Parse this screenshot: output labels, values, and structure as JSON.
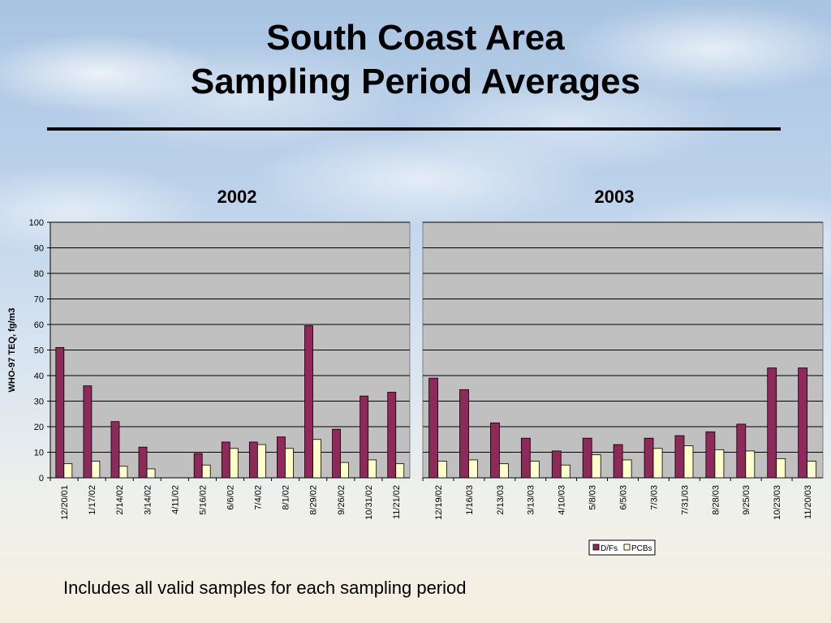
{
  "slide": {
    "title_line1": "South Coast Area",
    "title_line2": "Sampling Period Averages",
    "caption": "Includes all valid samples for each sampling period"
  },
  "colors": {
    "dfs": "#8e2a59",
    "pcbs": "#ffffcc",
    "plot_bg": "#c0c0c0",
    "gridline": "#000000"
  },
  "chart_data": [
    {
      "type": "bar",
      "title": "2002",
      "ylabel": "WHO-97 TEQ, fg/m3",
      "ylim": [
        0,
        100
      ],
      "yticks": [
        0,
        10,
        20,
        30,
        40,
        50,
        60,
        70,
        80,
        90,
        100
      ],
      "grid": true,
      "categories": [
        "12/20/01",
        "1/17/02",
        "2/14/02",
        "3/14/02",
        "4/11/02",
        "5/16/02",
        "6/6/02",
        "7/4/02",
        "8/1/02",
        "8/29/02",
        "9/26/02",
        "10/31/02",
        "11/21/02"
      ],
      "series": [
        {
          "name": "D/Fs",
          "values": [
            51,
            36,
            22,
            12,
            null,
            9.5,
            14,
            14,
            16,
            59.5,
            19,
            32,
            33.5
          ]
        },
        {
          "name": "PCBs",
          "values": [
            5.5,
            6.5,
            4.5,
            3.5,
            null,
            5,
            11.5,
            13,
            11.5,
            15,
            6,
            7,
            5.5
          ]
        }
      ]
    },
    {
      "type": "bar",
      "title": "2003",
      "ylim": [
        0,
        100
      ],
      "grid": true,
      "legend_position": "bottom-right",
      "categories": [
        "12/19/02",
        "1/16/03",
        "2/13/03",
        "3/13/03",
        "4/10/03",
        "5/8/03",
        "6/5/03",
        "7/3/03",
        "7/31/03",
        "8/28/03",
        "9/25/03",
        "10/23/03",
        "11/20/03"
      ],
      "series": [
        {
          "name": "D/Fs",
          "values": [
            39,
            34.5,
            21.5,
            15.5,
            10.5,
            15.5,
            13,
            15.5,
            16.5,
            18,
            21,
            43,
            43
          ]
        },
        {
          "name": "PCBs",
          "values": [
            6.5,
            7,
            5.5,
            6.5,
            5,
            9,
            7,
            11.5,
            12.5,
            11,
            10.5,
            7.5,
            6.5
          ]
        }
      ]
    }
  ]
}
